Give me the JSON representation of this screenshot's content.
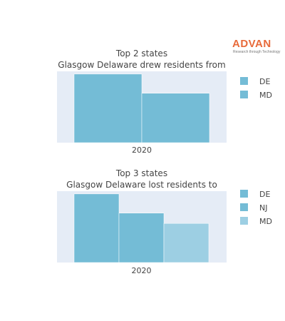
{
  "logo": {
    "name": "ADVAN",
    "tagline": "Research through Technology",
    "color": "#e86a3a"
  },
  "chart_data": [
    {
      "type": "bar",
      "title": "Top 2 states",
      "subtitle": "Glasgow Delaware drew residents from",
      "categories": [
        "2020"
      ],
      "series": [
        {
          "name": "DE",
          "values": [
            100
          ],
          "color": "#74bcd6"
        },
        {
          "name": "MD",
          "values": [
            72
          ],
          "color": "#74bcd6"
        }
      ],
      "ylim": [
        0,
        104
      ],
      "legend": "right",
      "plot_background": "#e5ecf6"
    },
    {
      "type": "bar",
      "title": "Top 3 states",
      "subtitle": "Glasgow Delaware lost residents to",
      "categories": [
        "2020"
      ],
      "series": [
        {
          "name": "DE",
          "values": [
            100
          ],
          "color": "#74bcd6"
        },
        {
          "name": "NJ",
          "values": [
            72
          ],
          "color": "#74bcd6"
        },
        {
          "name": "MD",
          "values": [
            57
          ],
          "color": "#9dcfe3"
        }
      ],
      "ylim": [
        0,
        104
      ],
      "legend": "right",
      "plot_background": "#e5ecf6"
    }
  ]
}
